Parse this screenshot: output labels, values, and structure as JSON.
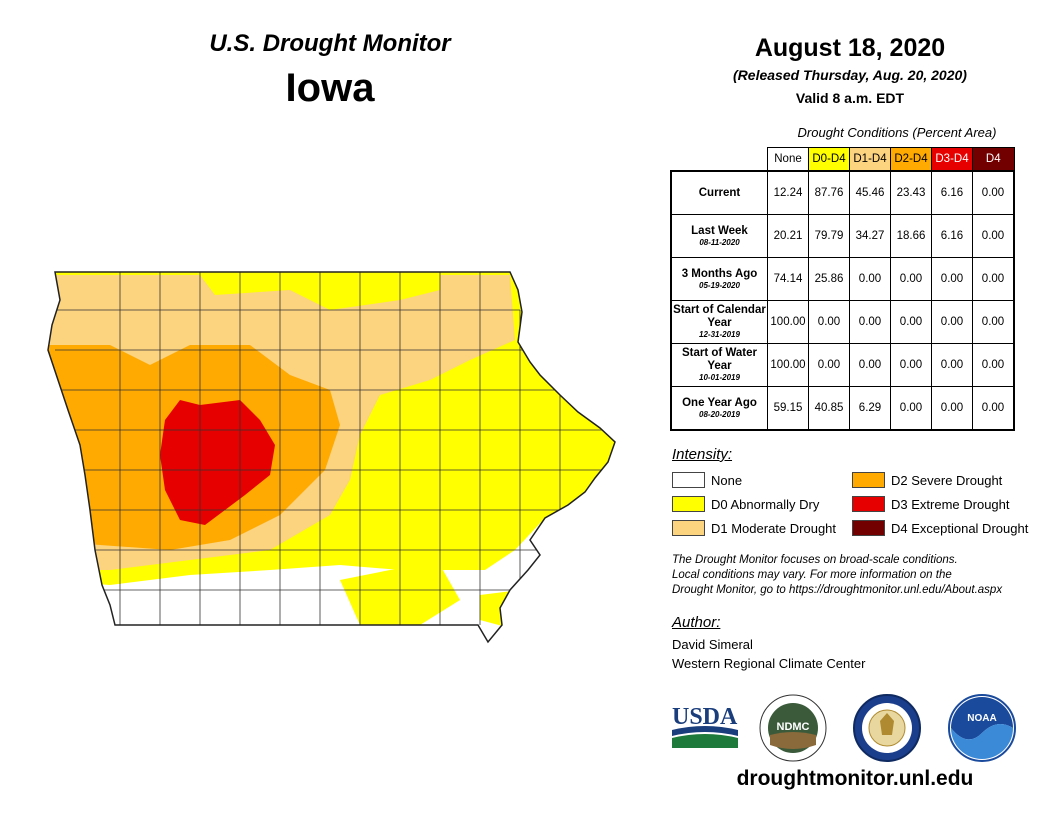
{
  "header": {
    "program": "U.S. Drought Monitor",
    "state": "Iowa",
    "date": "August 18, 2020",
    "released": "(Released Thursday, Aug. 20, 2020)",
    "valid": "Valid 8 a.m. EDT"
  },
  "table": {
    "caption": "Drought Conditions (Percent Area)",
    "columns": [
      "None",
      "D0-D4",
      "D1-D4",
      "D2-D4",
      "D3-D4",
      "D4"
    ],
    "column_colors": [
      "#ffffff",
      "#ffff00",
      "#fcd37f",
      "#ffaa00",
      "#e60000",
      "#730000"
    ],
    "rows": [
      {
        "label": "Current",
        "sub": "",
        "values": [
          "12.24",
          "87.76",
          "45.46",
          "23.43",
          "6.16",
          "0.00"
        ]
      },
      {
        "label": "Last Week",
        "sub": "08-11-2020",
        "values": [
          "20.21",
          "79.79",
          "34.27",
          "18.66",
          "6.16",
          "0.00"
        ]
      },
      {
        "label": "3 Months Ago",
        "sub": "05-19-2020",
        "values": [
          "74.14",
          "25.86",
          "0.00",
          "0.00",
          "0.00",
          "0.00"
        ]
      },
      {
        "label": "Start of Calendar Year",
        "sub": "12-31-2019",
        "values": [
          "100.00",
          "0.00",
          "0.00",
          "0.00",
          "0.00",
          "0.00"
        ]
      },
      {
        "label": "Start of Water Year",
        "sub": "10-01-2019",
        "values": [
          "100.00",
          "0.00",
          "0.00",
          "0.00",
          "0.00",
          "0.00"
        ]
      },
      {
        "label": "One Year Ago",
        "sub": "08-20-2019",
        "values": [
          "59.15",
          "40.85",
          "6.29",
          "0.00",
          "0.00",
          "0.00"
        ]
      }
    ]
  },
  "legend": {
    "title": "Intensity:",
    "items": [
      {
        "label": "None",
        "color": "#ffffff"
      },
      {
        "label": "D0 Abnormally Dry",
        "color": "#ffff00"
      },
      {
        "label": "D1 Moderate Drought",
        "color": "#fcd37f"
      },
      {
        "label": "D2 Severe Drought",
        "color": "#ffaa00"
      },
      {
        "label": "D3 Extreme Drought",
        "color": "#e60000"
      },
      {
        "label": "D4 Exceptional Drought",
        "color": "#730000"
      }
    ]
  },
  "note": {
    "line1": "The Drought Monitor focuses on broad-scale conditions.",
    "line2": "Local conditions may vary. For more information on the",
    "line3": "Drought Monitor, go to https://droughtmonitor.unl.edu/About.aspx"
  },
  "author": {
    "title": "Author:",
    "name": "David Simeral",
    "org": "Western Regional Climate Center"
  },
  "logos": {
    "usda": "USDA",
    "ndmc": "NDMC",
    "noaa": "NOAA"
  },
  "footer": {
    "url": "droughtmonitor.unl.edu"
  }
}
